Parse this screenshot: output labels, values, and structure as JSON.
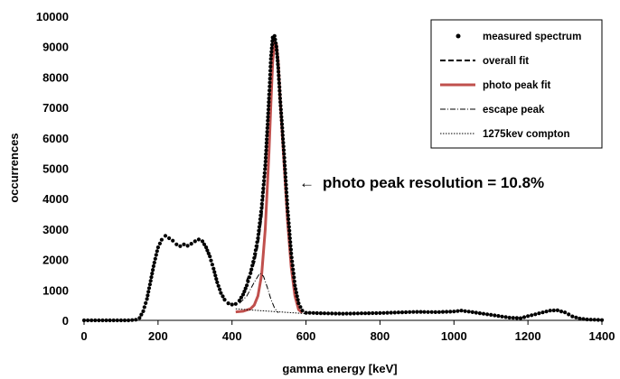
{
  "chart_data": {
    "type": "scatter",
    "xlabel": "gamma energy [keV]",
    "ylabel": "occurrences",
    "xlim": [
      0,
      1400
    ],
    "ylim": [
      0,
      10000
    ],
    "xticks": [
      "0",
      "200",
      "400",
      "600",
      "800",
      "1000",
      "1200",
      "1400"
    ],
    "yticks": [
      "0",
      "1000",
      "2000",
      "3000",
      "4000",
      "5000",
      "6000",
      "7000",
      "8000",
      "9000",
      "10000"
    ],
    "grid": false,
    "legend_position": "top-right",
    "legend": [
      {
        "label": "measured spectrum",
        "style": "dots"
      },
      {
        "label": "overall fit",
        "style": "dashed"
      },
      {
        "label": "photo peak fit",
        "style": "solid-red"
      },
      {
        "label": "escape peak",
        "style": "dash-dot"
      },
      {
        "label": "1275kev compton",
        "style": "dotted"
      }
    ],
    "annotation": {
      "text": "photo peak resolution = 10.8%",
      "arrow": "←",
      "color": "#c0504d",
      "points_to_x": 560,
      "points_to_y": 4600
    },
    "colors": {
      "measured": "#000000",
      "photo_peak_fit": "#c0504d"
    },
    "series": [
      {
        "name": "measured spectrum",
        "points": [
          [
            0,
            0
          ],
          [
            20,
            0
          ],
          [
            40,
            0
          ],
          [
            60,
            0
          ],
          [
            80,
            0
          ],
          [
            100,
            0
          ],
          [
            120,
            0
          ],
          [
            140,
            20
          ],
          [
            150,
            80
          ],
          [
            160,
            300
          ],
          [
            170,
            700
          ],
          [
            180,
            1300
          ],
          [
            190,
            1900
          ],
          [
            200,
            2400
          ],
          [
            210,
            2650
          ],
          [
            220,
            2780
          ],
          [
            230,
            2700
          ],
          [
            240,
            2620
          ],
          [
            250,
            2500
          ],
          [
            260,
            2440
          ],
          [
            270,
            2500
          ],
          [
            280,
            2450
          ],
          [
            290,
            2520
          ],
          [
            300,
            2600
          ],
          [
            310,
            2660
          ],
          [
            320,
            2600
          ],
          [
            330,
            2400
          ],
          [
            340,
            2100
          ],
          [
            350,
            1700
          ],
          [
            360,
            1250
          ],
          [
            370,
            900
          ],
          [
            380,
            680
          ],
          [
            390,
            560
          ],
          [
            400,
            520
          ],
          [
            410,
            540
          ],
          [
            420,
            650
          ],
          [
            430,
            850
          ],
          [
            440,
            1150
          ],
          [
            450,
            1550
          ],
          [
            460,
            2050
          ],
          [
            470,
            2700
          ],
          [
            480,
            3700
          ],
          [
            490,
            5100
          ],
          [
            500,
            7300
          ],
          [
            505,
            8600
          ],
          [
            510,
            9300
          ],
          [
            515,
            9350
          ],
          [
            520,
            9000
          ],
          [
            525,
            8300
          ],
          [
            530,
            7300
          ],
          [
            540,
            5600
          ],
          [
            550,
            3700
          ],
          [
            560,
            2200
          ],
          [
            570,
            1150
          ],
          [
            580,
            560
          ],
          [
            590,
            320
          ],
          [
            600,
            250
          ],
          [
            650,
            230
          ],
          [
            700,
            220
          ],
          [
            750,
            230
          ],
          [
            800,
            240
          ],
          [
            850,
            260
          ],
          [
            900,
            280
          ],
          [
            950,
            270
          ],
          [
            1000,
            290
          ],
          [
            1020,
            320
          ],
          [
            1050,
            270
          ],
          [
            1100,
            180
          ],
          [
            1150,
            90
          ],
          [
            1180,
            70
          ],
          [
            1200,
            140
          ],
          [
            1230,
            230
          ],
          [
            1260,
            320
          ],
          [
            1280,
            330
          ],
          [
            1300,
            260
          ],
          [
            1320,
            130
          ],
          [
            1340,
            60
          ],
          [
            1360,
            30
          ],
          [
            1380,
            20
          ],
          [
            1400,
            10
          ]
        ]
      },
      {
        "name": "overall fit",
        "points": [
          [
            440,
            1300
          ],
          [
            460,
            1900
          ],
          [
            470,
            2500
          ],
          [
            480,
            3400
          ],
          [
            490,
            4900
          ],
          [
            500,
            7000
          ],
          [
            510,
            8900
          ],
          [
            515,
            9200
          ],
          [
            520,
            8950
          ],
          [
            530,
            7200
          ],
          [
            540,
            5500
          ],
          [
            550,
            3600
          ],
          [
            560,
            2100
          ]
        ]
      },
      {
        "name": "photo peak fit",
        "points": [
          [
            410,
            280
          ],
          [
            430,
            300
          ],
          [
            450,
            380
          ],
          [
            460,
            500
          ],
          [
            470,
            800
          ],
          [
            480,
            1500
          ],
          [
            490,
            3000
          ],
          [
            500,
            5500
          ],
          [
            505,
            7100
          ],
          [
            510,
            8500
          ],
          [
            515,
            9150
          ],
          [
            520,
            9100
          ],
          [
            525,
            8500
          ],
          [
            530,
            7300
          ],
          [
            540,
            5300
          ],
          [
            550,
            3300
          ],
          [
            560,
            1750
          ],
          [
            570,
            800
          ],
          [
            580,
            350
          ],
          [
            590,
            250
          ]
        ]
      },
      {
        "name": "escape peak",
        "points": [
          [
            420,
            560
          ],
          [
            440,
            800
          ],
          [
            460,
            1250
          ],
          [
            475,
            1550
          ],
          [
            485,
            1450
          ],
          [
            495,
            1100
          ],
          [
            505,
            700
          ],
          [
            515,
            400
          ],
          [
            525,
            250
          ]
        ]
      },
      {
        "name": "1275kev compton",
        "points": [
          [
            410,
            380
          ],
          [
            450,
            340
          ],
          [
            500,
            300
          ],
          [
            550,
            260
          ],
          [
            600,
            220
          ]
        ]
      }
    ]
  }
}
